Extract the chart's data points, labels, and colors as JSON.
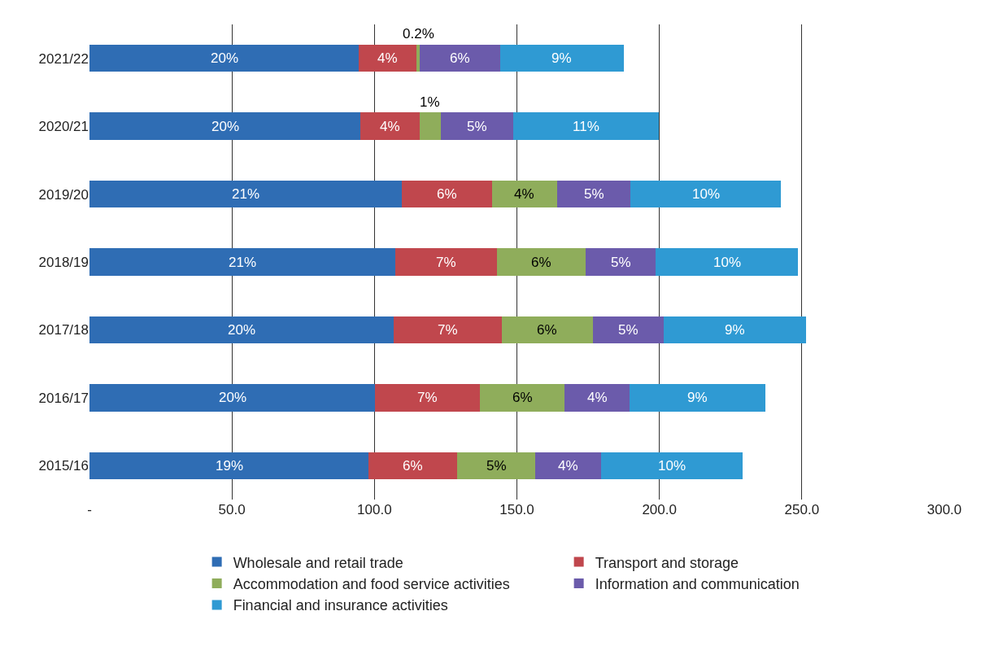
{
  "chart_data": {
    "type": "bar",
    "orientation": "horizontal",
    "stacked": true,
    "categories": [
      "2021/22",
      "2020/21",
      "2019/20",
      "2018/19",
      "2017/18",
      "2016/17",
      "2015/16"
    ],
    "series": [
      {
        "name": "Wholesale and retail trade",
        "color": "#2f6db4",
        "values": [
          94.5,
          95.1,
          109.6,
          107.2,
          106.7,
          100.3,
          98.0
        ]
      },
      {
        "name": "Transport and storage",
        "color": "#c0474d",
        "values": [
          20.3,
          20.8,
          31.6,
          35.7,
          37.9,
          36.8,
          31.0
        ]
      },
      {
        "name": "Accommodation and food service activities",
        "color": "#8fad5b",
        "values": [
          1.1,
          7.3,
          22.9,
          31.3,
          32.2,
          29.6,
          27.5
        ]
      },
      {
        "name": "Information and communication",
        "color": "#6b5bab",
        "values": [
          28.2,
          25.5,
          25.8,
          24.6,
          24.6,
          22.9,
          22.9
        ]
      },
      {
        "name": "Financial and insurance activities",
        "color": "#2f9ad3",
        "values": [
          43.4,
          51.0,
          52.7,
          49.9,
          50.2,
          47.5,
          49.9
        ]
      }
    ],
    "annotations": [
      "20%",
      "4%",
      "0.2%",
      "6%",
      "9%",
      "20%",
      "4%",
      "1%",
      "5%",
      "11%",
      "21%",
      "6%",
      "4%",
      "5%",
      "10%",
      "21%",
      "7%",
      "6%",
      "5%",
      "10%",
      "20%",
      "7%",
      "6%",
      "5%",
      "9%",
      "20%",
      "7%",
      "6%",
      "4%",
      "9%",
      "19%",
      "6%",
      "5%",
      "4%",
      "10%"
    ],
    "xlim": [
      0,
      300
    ],
    "xticks": [
      {
        "value": 0,
        "label": "-"
      },
      {
        "value": 50,
        "label": "50.0"
      },
      {
        "value": 100,
        "label": "100.0"
      },
      {
        "value": 150,
        "label": "150.0"
      },
      {
        "value": 200,
        "label": "200.0"
      },
      {
        "value": 250,
        "label": "250.0"
      },
      {
        "value": 300,
        "label": "300.0"
      }
    ],
    "grid": "x",
    "legend": "bottom"
  }
}
